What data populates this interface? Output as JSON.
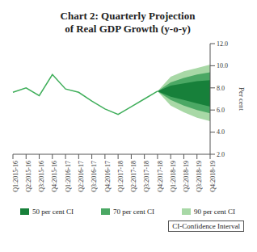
{
  "chart_data": {
    "type": "line",
    "title": "Chart 2: Quarterly Projection of Real GDP Growth (y-o-y)",
    "y_label": "Per cent",
    "categories": [
      "Q1:2015-16",
      "Q2:2015-16",
      "Q3:2015-16",
      "Q4:2015-16",
      "Q1:2016-17",
      "Q2:2016-17",
      "Q3:2016-17",
      "Q4:2016-17",
      "Q1:2017-18",
      "Q2:2017-18",
      "Q3:2017-18",
      "Q4:2017-18",
      "Q1:2018-19",
      "Q2:2018-19",
      "Q3:2018-19",
      "Q4:2018-19"
    ],
    "series": [
      {
        "type": "line",
        "color": "#3fae5a",
        "values": [
          7.6,
          8.0,
          7.3,
          9.2,
          7.9,
          7.6,
          6.8,
          6.1,
          5.6,
          6.3,
          7.0,
          7.7,
          null,
          null,
          null,
          null
        ]
      }
    ],
    "bands": [
      {
        "name": "50 per cent CI",
        "color": "#17803a",
        "lower": [
          null,
          null,
          null,
          null,
          null,
          null,
          null,
          null,
          null,
          null,
          null,
          7.7,
          7.2,
          6.9,
          6.6,
          6.3
        ],
        "upper": [
          null,
          null,
          null,
          null,
          null,
          null,
          null,
          null,
          null,
          null,
          null,
          7.7,
          8.2,
          8.4,
          8.6,
          8.7
        ]
      },
      {
        "name": "70 per cent CI",
        "color": "#4ba864",
        "lower": [
          null,
          null,
          null,
          null,
          null,
          null,
          null,
          null,
          null,
          null,
          null,
          7.7,
          6.9,
          6.4,
          6.0,
          5.7
        ],
        "upper": [
          null,
          null,
          null,
          null,
          null,
          null,
          null,
          null,
          null,
          null,
          null,
          7.7,
          8.5,
          8.9,
          9.2,
          9.4
        ]
      },
      {
        "name": "90 per cent CI",
        "color": "#a8d8a6",
        "lower": [
          null,
          null,
          null,
          null,
          null,
          null,
          null,
          null,
          null,
          null,
          null,
          7.7,
          6.4,
          5.8,
          5.3,
          5.0
        ],
        "upper": [
          null,
          null,
          null,
          null,
          null,
          null,
          null,
          null,
          null,
          null,
          null,
          7.7,
          9.0,
          9.5,
          9.8,
          10.1
        ]
      }
    ],
    "ylim": [
      2,
      12
    ],
    "yticks": [
      {
        "value": 2,
        "label": "2.0"
      },
      {
        "value": 4,
        "label": "4.0"
      },
      {
        "value": 6,
        "label": "6.0"
      },
      {
        "value": 8,
        "label": "8.0"
      },
      {
        "value": 10,
        "label": "10.0"
      },
      {
        "value": 12,
        "label": "12.0"
      }
    ],
    "legend": "bottom",
    "annotations": [
      "CI-Confidence Interval"
    ]
  }
}
